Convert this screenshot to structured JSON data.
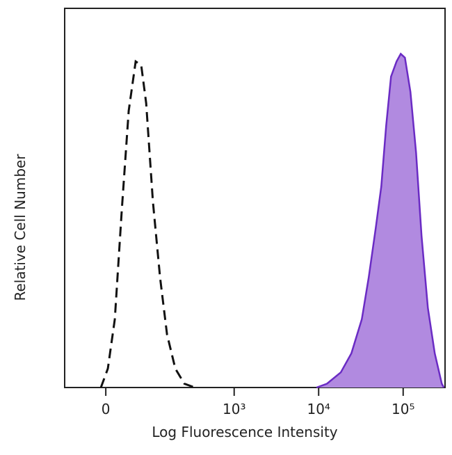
{
  "chart_data": {
    "type": "area",
    "xlabel": "Log Fluorescence Intensity",
    "ylabel": "Relative Cell Number",
    "xscale": "asinh",
    "xlim": [
      -83,
      313000
    ],
    "ylim": [
      0,
      100
    ],
    "xticks": [
      0,
      {
        "value": 1000,
        "label": "10³"
      },
      {
        "value": 10000,
        "label": "10⁴"
      },
      {
        "value": 100000,
        "label": "10⁵"
      }
    ],
    "series": [
      {
        "color": "#111111",
        "dashed": true,
        "filled": false,
        "x": [
          -8.1,
          3.4,
          15.1,
          27.3,
          40.4,
          55,
          68,
          81,
          101,
          126,
          155,
          197,
          254,
          340
        ],
        "values": [
          0,
          5,
          18,
          47,
          73,
          86,
          85,
          75,
          49,
          29,
          14,
          5,
          1,
          0
        ]
      },
      {
        "color": "#6a2bc4",
        "fill": "#b18ae0",
        "dashed": false,
        "filled": true,
        "x": [
          9450,
          12550,
          18300,
          24400,
          32400,
          39100,
          47300,
          55100,
          62900,
          71800,
          83500,
          93600,
          104900,
          121900,
          142100,
          165100,
          196000,
          236600,
          286300,
          303000
        ],
        "values": [
          0,
          1,
          4,
          9,
          18,
          29,
          42,
          53,
          69,
          82,
          86,
          88,
          87,
          78,
          62,
          40,
          21,
          9,
          1,
          0
        ]
      }
    ]
  }
}
